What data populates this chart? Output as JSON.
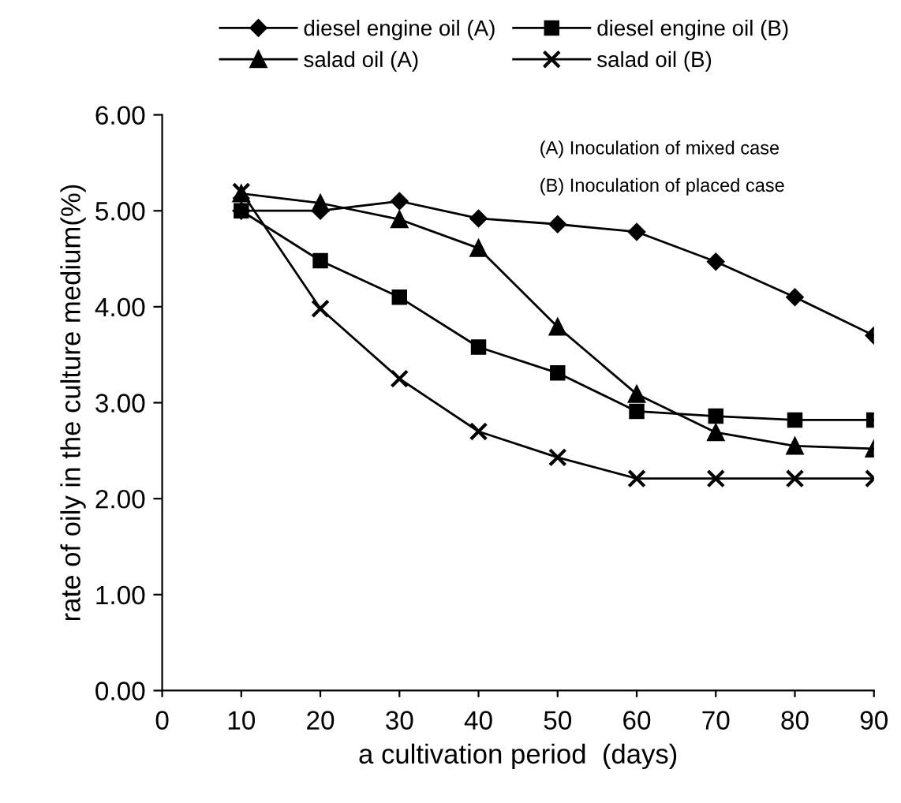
{
  "chart_data": {
    "type": "line",
    "xlabel": "a cultivation period  (days)",
    "ylabel": "rate of oily in the culture medium(%)",
    "x": [
      10,
      20,
      30,
      40,
      50,
      60,
      70,
      80,
      90
    ],
    "series": [
      {
        "name": "diesel engine oil (A)",
        "color": "#000000",
        "marker": "diamond",
        "values": [
          5.0,
          5.0,
          5.1,
          4.92,
          4.86,
          4.78,
          4.47,
          4.1,
          3.7
        ]
      },
      {
        "name": "diesel engine oil (B)",
        "color": "#000000",
        "marker": "square",
        "values": [
          5.0,
          4.48,
          4.1,
          3.58,
          3.31,
          2.91,
          2.86,
          2.82,
          2.82
        ]
      },
      {
        "name": "salad oil (A)",
        "color": "#000000",
        "marker": "triangle",
        "values": [
          5.18,
          5.08,
          4.91,
          4.61,
          3.79,
          3.09,
          2.69,
          2.55,
          2.52
        ]
      },
      {
        "name": "salad oil (B)",
        "color": "#000000",
        "marker": "cross",
        "values": [
          5.2,
          3.98,
          3.25,
          2.7,
          2.43,
          2.21,
          2.21,
          2.21,
          2.21
        ]
      }
    ],
    "annotations": [
      "(A) Inoculation of mixed case",
      "(B) Inoculation of placed case"
    ],
    "xlim": [
      0,
      90
    ],
    "xticks": [
      0,
      10,
      20,
      30,
      40,
      50,
      60,
      70,
      80,
      90
    ],
    "ylim": [
      0,
      6
    ],
    "yticks": [
      {
        "value": 0,
        "label": "0.00"
      },
      {
        "value": 1,
        "label": "1.00"
      },
      {
        "value": 2,
        "label": "2.00"
      },
      {
        "value": 3,
        "label": "3.00"
      },
      {
        "value": 4,
        "label": "4.00"
      },
      {
        "value": 5,
        "label": "5.00"
      },
      {
        "value": 6,
        "label": "6.00"
      }
    ],
    "grid": false,
    "legend": "top",
    "line_style": "solid"
  }
}
